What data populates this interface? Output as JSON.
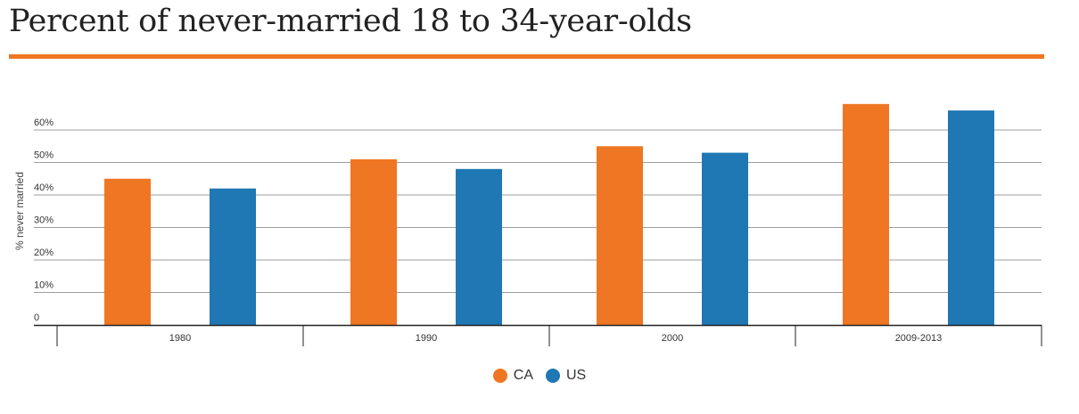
{
  "title": "Percent of never-married 18 to 34-year-olds",
  "colors": {
    "accent": "#ef7622",
    "ca": "#ef7622",
    "us": "#1f77b4",
    "grid": "#9e9e9e",
    "axis": "#333333"
  },
  "chart_data": {
    "type": "bar",
    "title": "Percent of never-married 18 to 34-year-olds",
    "xlabel": "",
    "ylabel": "% never married",
    "categories": [
      "1980",
      "1990",
      "2000",
      "2009-2013"
    ],
    "series": [
      {
        "name": "CA",
        "color": "#ef7622",
        "values": [
          45,
          51,
          55,
          68
        ]
      },
      {
        "name": "US",
        "color": "#1f77b4",
        "values": [
          42,
          48,
          53,
          66
        ]
      }
    ],
    "ylim": [
      0,
      70
    ],
    "yticks": [
      0,
      10,
      20,
      30,
      40,
      50,
      60
    ],
    "ytick_labels": [
      "0",
      "10%",
      "20%",
      "30%",
      "40%",
      "50%",
      "60%"
    ],
    "grid": true,
    "legend_position": "bottom-center"
  }
}
